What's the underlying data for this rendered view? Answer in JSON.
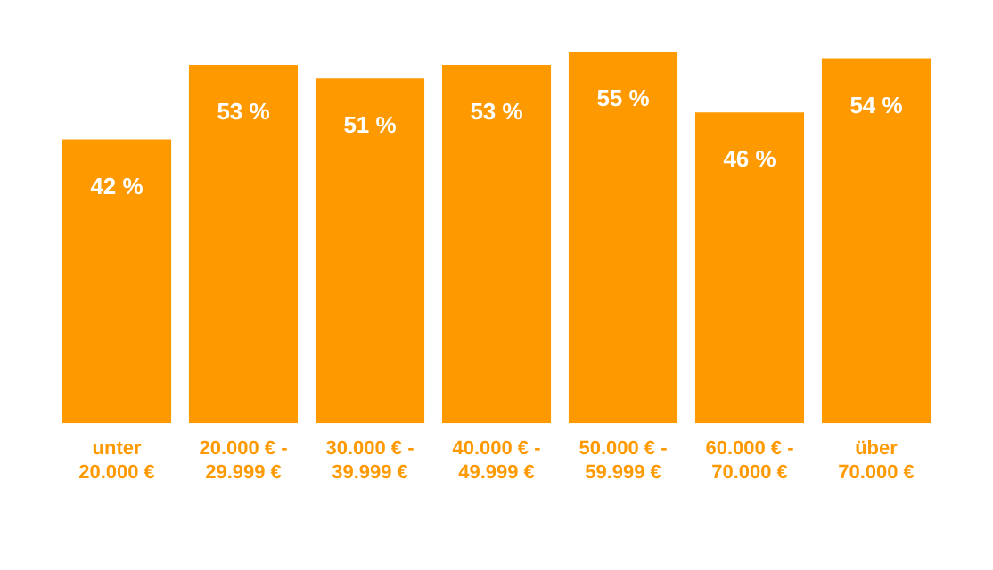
{
  "chart_data": {
    "type": "bar",
    "categories": [
      "unter 20.000 €",
      "20.000 € - 29.999 €",
      "30.000 € - 39.999 €",
      "40.000 € - 49.999 €",
      "50.000 € - 59.999 €",
      "60.000 € - 70.000 €",
      "über 70.000 €"
    ],
    "values": [
      42,
      53,
      51,
      53,
      55,
      46,
      54
    ],
    "color": "#ff9900",
    "value_labels": [
      "42 %",
      "53 %",
      "51 %",
      "53 %",
      "55 %",
      "46 %",
      "54 %"
    ],
    "grid": false,
    "legend": false
  }
}
